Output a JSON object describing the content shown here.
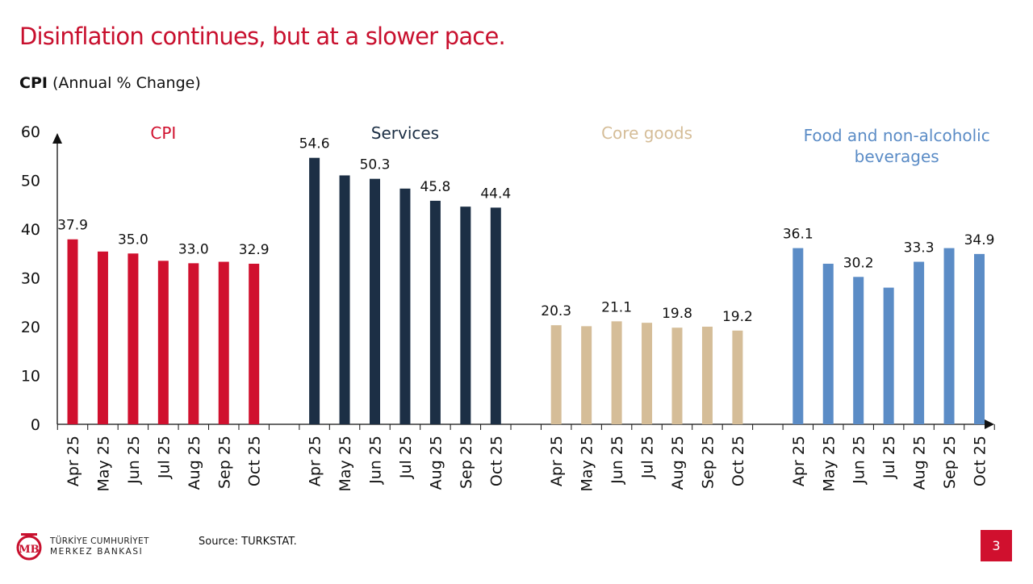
{
  "title": "Disinflation continues, but at a slower pace.",
  "subtitle_bold": "CPI",
  "subtitle_rest": " (Annual % Change)",
  "source": "Source: TURKSTAT.",
  "page_number": "3",
  "logo": {
    "line1": "TÜRKİYE CUMHURİYET",
    "line2": "MERKEZ BANKASI",
    "mark": "TCMB"
  },
  "chart_data": {
    "type": "bar",
    "ylim": [
      0,
      60
    ],
    "yticks": [
      0,
      10,
      20,
      30,
      40,
      50,
      60
    ],
    "grid": false,
    "categories": [
      "Apr 25",
      "May 25",
      "Jun 25",
      "Jul 25",
      "Aug 25",
      "Sep 25",
      "Oct 25"
    ],
    "series": [
      {
        "name": "CPI",
        "color": "#d0102e",
        "values": [
          37.9,
          35.4,
          35.0,
          33.5,
          33.0,
          33.3,
          32.9
        ],
        "labels": [
          "37.9",
          "",
          "35.0",
          "",
          "33.0",
          "",
          "32.9"
        ]
      },
      {
        "name": "Services",
        "color": "#1c2f45",
        "values": [
          54.6,
          51.0,
          50.3,
          48.3,
          45.8,
          44.6,
          44.4
        ],
        "labels": [
          "54.6",
          "",
          "50.3",
          "",
          "45.8",
          "",
          "44.4"
        ]
      },
      {
        "name": "Core goods",
        "color": "#d5bd98",
        "values": [
          20.3,
          20.1,
          21.1,
          20.8,
          19.8,
          20.0,
          19.2
        ],
        "labels": [
          "20.3",
          "",
          "21.1",
          "",
          "19.8",
          "",
          "19.2"
        ]
      },
      {
        "name": "Food and non-alcoholic beverages",
        "name_lines": [
          "Food and non-alcoholic",
          "beverages"
        ],
        "color": "#5b8cc6",
        "values": [
          36.1,
          32.9,
          30.2,
          28.0,
          33.3,
          36.1,
          34.9
        ],
        "labels": [
          "36.1",
          "",
          "30.2",
          "",
          "33.3",
          "",
          "34.9"
        ]
      }
    ]
  }
}
